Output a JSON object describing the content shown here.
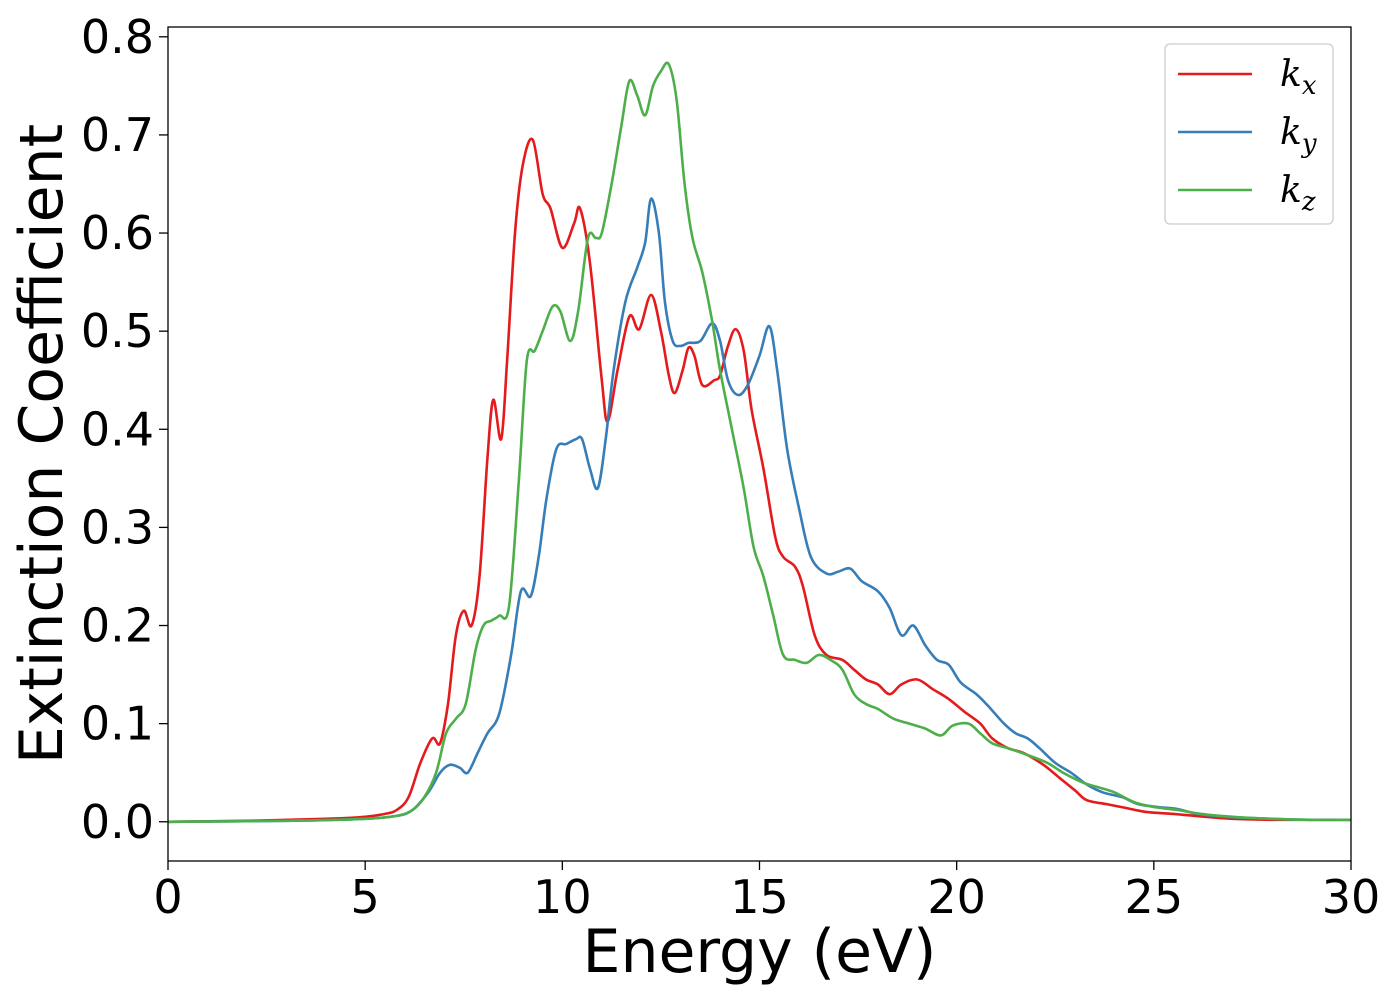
{
  "chart_data": {
    "type": "line",
    "xlabel": "Energy (eV)",
    "ylabel": "Extinction Coefficient",
    "xlim": [
      0,
      30
    ],
    "ylim": [
      -0.04,
      0.81
    ],
    "xticks": [
      0,
      5,
      10,
      15,
      20,
      25,
      30
    ],
    "xtick_labels": [
      "0",
      "5",
      "10",
      "15",
      "20",
      "25",
      "30"
    ],
    "yticks": [
      0.0,
      0.1,
      0.2,
      0.3,
      0.4,
      0.5,
      0.6,
      0.7,
      0.8
    ],
    "ytick_labels": [
      "0.0",
      "0.1",
      "0.2",
      "0.3",
      "0.4",
      "0.5",
      "0.6",
      "0.7",
      "0.8"
    ],
    "grid": false,
    "legend_position": "top-right",
    "series": [
      {
        "name": "k",
        "subscript": "x",
        "color": "#e41a1c",
        "points": [
          [
            0,
            0
          ],
          [
            2,
            0.001
          ],
          [
            4,
            0.003
          ],
          [
            5,
            0.005
          ],
          [
            5.5,
            0.008
          ],
          [
            5.8,
            0.012
          ],
          [
            6.1,
            0.025
          ],
          [
            6.4,
            0.06
          ],
          [
            6.7,
            0.085
          ],
          [
            6.9,
            0.08
          ],
          [
            7.1,
            0.12
          ],
          [
            7.3,
            0.19
          ],
          [
            7.5,
            0.215
          ],
          [
            7.7,
            0.2
          ],
          [
            7.9,
            0.25
          ],
          [
            8.1,
            0.37
          ],
          [
            8.25,
            0.43
          ],
          [
            8.45,
            0.39
          ],
          [
            8.6,
            0.47
          ],
          [
            8.8,
            0.6
          ],
          [
            9.0,
            0.67
          ],
          [
            9.25,
            0.695
          ],
          [
            9.5,
            0.64
          ],
          [
            9.7,
            0.625
          ],
          [
            10.0,
            0.585
          ],
          [
            10.3,
            0.61
          ],
          [
            10.45,
            0.625
          ],
          [
            10.7,
            0.57
          ],
          [
            11.0,
            0.45
          ],
          [
            11.15,
            0.408
          ],
          [
            11.4,
            0.46
          ],
          [
            11.7,
            0.515
          ],
          [
            11.95,
            0.502
          ],
          [
            12.25,
            0.537
          ],
          [
            12.5,
            0.5
          ],
          [
            12.7,
            0.455
          ],
          [
            12.85,
            0.437
          ],
          [
            13.05,
            0.46
          ],
          [
            13.2,
            0.483
          ],
          [
            13.35,
            0.475
          ],
          [
            13.55,
            0.445
          ],
          [
            13.85,
            0.45
          ],
          [
            14.0,
            0.455
          ],
          [
            14.2,
            0.485
          ],
          [
            14.4,
            0.502
          ],
          [
            14.6,
            0.48
          ],
          [
            14.8,
            0.42
          ],
          [
            15.1,
            0.36
          ],
          [
            15.4,
            0.29
          ],
          [
            15.6,
            0.27
          ],
          [
            15.9,
            0.26
          ],
          [
            16.1,
            0.24
          ],
          [
            16.4,
            0.19
          ],
          [
            16.7,
            0.17
          ],
          [
            17.1,
            0.165
          ],
          [
            17.4,
            0.155
          ],
          [
            17.7,
            0.145
          ],
          [
            18.0,
            0.14
          ],
          [
            18.3,
            0.13
          ],
          [
            18.6,
            0.14
          ],
          [
            19.0,
            0.145
          ],
          [
            19.4,
            0.135
          ],
          [
            19.8,
            0.125
          ],
          [
            20.2,
            0.112
          ],
          [
            20.6,
            0.1
          ],
          [
            20.9,
            0.085
          ],
          [
            21.3,
            0.075
          ],
          [
            21.7,
            0.07
          ],
          [
            22.2,
            0.058
          ],
          [
            22.6,
            0.045
          ],
          [
            23.0,
            0.032
          ],
          [
            23.3,
            0.022
          ],
          [
            23.8,
            0.018
          ],
          [
            24.3,
            0.014
          ],
          [
            24.8,
            0.01
          ],
          [
            25.5,
            0.008
          ],
          [
            26.3,
            0.005
          ],
          [
            27.0,
            0.003
          ],
          [
            28.0,
            0.002
          ],
          [
            29.0,
            0.002
          ],
          [
            30,
            0.002
          ]
        ]
      },
      {
        "name": "k",
        "subscript": "y",
        "color": "#377eb8",
        "points": [
          [
            0,
            0
          ],
          [
            3,
            0.001
          ],
          [
            5,
            0.003
          ],
          [
            5.8,
            0.006
          ],
          [
            6.2,
            0.012
          ],
          [
            6.6,
            0.03
          ],
          [
            6.9,
            0.05
          ],
          [
            7.15,
            0.058
          ],
          [
            7.4,
            0.055
          ],
          [
            7.6,
            0.05
          ],
          [
            7.85,
            0.07
          ],
          [
            8.1,
            0.09
          ],
          [
            8.4,
            0.11
          ],
          [
            8.7,
            0.17
          ],
          [
            8.95,
            0.235
          ],
          [
            9.2,
            0.23
          ],
          [
            9.4,
            0.27
          ],
          [
            9.6,
            0.33
          ],
          [
            9.85,
            0.38
          ],
          [
            10.1,
            0.385
          ],
          [
            10.35,
            0.39
          ],
          [
            10.5,
            0.39
          ],
          [
            10.7,
            0.36
          ],
          [
            10.9,
            0.34
          ],
          [
            11.1,
            0.39
          ],
          [
            11.3,
            0.46
          ],
          [
            11.6,
            0.53
          ],
          [
            11.9,
            0.565
          ],
          [
            12.1,
            0.59
          ],
          [
            12.25,
            0.635
          ],
          [
            12.45,
            0.6
          ],
          [
            12.6,
            0.53
          ],
          [
            12.8,
            0.49
          ],
          [
            13.0,
            0.485
          ],
          [
            13.2,
            0.488
          ],
          [
            13.5,
            0.49
          ],
          [
            13.8,
            0.508
          ],
          [
            14.0,
            0.49
          ],
          [
            14.2,
            0.45
          ],
          [
            14.45,
            0.435
          ],
          [
            14.7,
            0.445
          ],
          [
            15.0,
            0.475
          ],
          [
            15.25,
            0.505
          ],
          [
            15.45,
            0.46
          ],
          [
            15.7,
            0.38
          ],
          [
            16.0,
            0.32
          ],
          [
            16.3,
            0.27
          ],
          [
            16.7,
            0.253
          ],
          [
            17.0,
            0.255
          ],
          [
            17.3,
            0.258
          ],
          [
            17.6,
            0.245
          ],
          [
            18.0,
            0.235
          ],
          [
            18.3,
            0.218
          ],
          [
            18.6,
            0.19
          ],
          [
            18.9,
            0.2
          ],
          [
            19.2,
            0.18
          ],
          [
            19.5,
            0.165
          ],
          [
            19.8,
            0.16
          ],
          [
            20.1,
            0.142
          ],
          [
            20.5,
            0.13
          ],
          [
            20.8,
            0.118
          ],
          [
            21.2,
            0.1
          ],
          [
            21.5,
            0.09
          ],
          [
            21.8,
            0.085
          ],
          [
            22.1,
            0.075
          ],
          [
            22.5,
            0.06
          ],
          [
            22.9,
            0.05
          ],
          [
            23.3,
            0.038
          ],
          [
            23.7,
            0.03
          ],
          [
            24.2,
            0.025
          ],
          [
            24.6,
            0.018
          ],
          [
            25.1,
            0.015
          ],
          [
            25.6,
            0.013
          ],
          [
            26.1,
            0.008
          ],
          [
            26.8,
            0.005
          ],
          [
            28,
            0.003
          ],
          [
            29,
            0.002
          ],
          [
            30,
            0.002
          ]
        ]
      },
      {
        "name": "k",
        "subscript": "z",
        "color": "#4daf4a",
        "points": [
          [
            0,
            0
          ],
          [
            3,
            0.001
          ],
          [
            5,
            0.003
          ],
          [
            5.8,
            0.006
          ],
          [
            6.2,
            0.012
          ],
          [
            6.5,
            0.025
          ],
          [
            6.8,
            0.05
          ],
          [
            7.05,
            0.09
          ],
          [
            7.3,
            0.105
          ],
          [
            7.55,
            0.12
          ],
          [
            7.8,
            0.175
          ],
          [
            8.0,
            0.2
          ],
          [
            8.2,
            0.205
          ],
          [
            8.4,
            0.21
          ],
          [
            8.65,
            0.22
          ],
          [
            8.9,
            0.35
          ],
          [
            9.1,
            0.47
          ],
          [
            9.3,
            0.48
          ],
          [
            9.5,
            0.5
          ],
          [
            9.75,
            0.525
          ],
          [
            9.95,
            0.52
          ],
          [
            10.2,
            0.49
          ],
          [
            10.4,
            0.52
          ],
          [
            10.65,
            0.595
          ],
          [
            10.85,
            0.595
          ],
          [
            11.0,
            0.6
          ],
          [
            11.25,
            0.65
          ],
          [
            11.5,
            0.71
          ],
          [
            11.7,
            0.755
          ],
          [
            11.9,
            0.74
          ],
          [
            12.1,
            0.72
          ],
          [
            12.3,
            0.75
          ],
          [
            12.5,
            0.765
          ],
          [
            12.7,
            0.772
          ],
          [
            12.9,
            0.735
          ],
          [
            13.1,
            0.65
          ],
          [
            13.3,
            0.595
          ],
          [
            13.55,
            0.56
          ],
          [
            13.8,
            0.51
          ],
          [
            14.0,
            0.46
          ],
          [
            14.3,
            0.4
          ],
          [
            14.6,
            0.34
          ],
          [
            14.85,
            0.28
          ],
          [
            15.1,
            0.25
          ],
          [
            15.35,
            0.21
          ],
          [
            15.6,
            0.17
          ],
          [
            15.9,
            0.165
          ],
          [
            16.2,
            0.162
          ],
          [
            16.5,
            0.17
          ],
          [
            16.8,
            0.165
          ],
          [
            17.1,
            0.155
          ],
          [
            17.4,
            0.13
          ],
          [
            17.7,
            0.12
          ],
          [
            18.0,
            0.115
          ],
          [
            18.4,
            0.105
          ],
          [
            18.8,
            0.1
          ],
          [
            19.2,
            0.095
          ],
          [
            19.6,
            0.088
          ],
          [
            19.9,
            0.098
          ],
          [
            20.3,
            0.1
          ],
          [
            20.6,
            0.09
          ],
          [
            20.9,
            0.08
          ],
          [
            21.3,
            0.075
          ],
          [
            21.8,
            0.068
          ],
          [
            22.3,
            0.06
          ],
          [
            22.7,
            0.05
          ],
          [
            23.2,
            0.04
          ],
          [
            23.6,
            0.035
          ],
          [
            24.0,
            0.03
          ],
          [
            24.5,
            0.02
          ],
          [
            25.0,
            0.015
          ],
          [
            25.6,
            0.012
          ],
          [
            26.2,
            0.008
          ],
          [
            27,
            0.005
          ],
          [
            28,
            0.003
          ],
          [
            29,
            0.002
          ],
          [
            30,
            0.002
          ]
        ]
      }
    ]
  }
}
